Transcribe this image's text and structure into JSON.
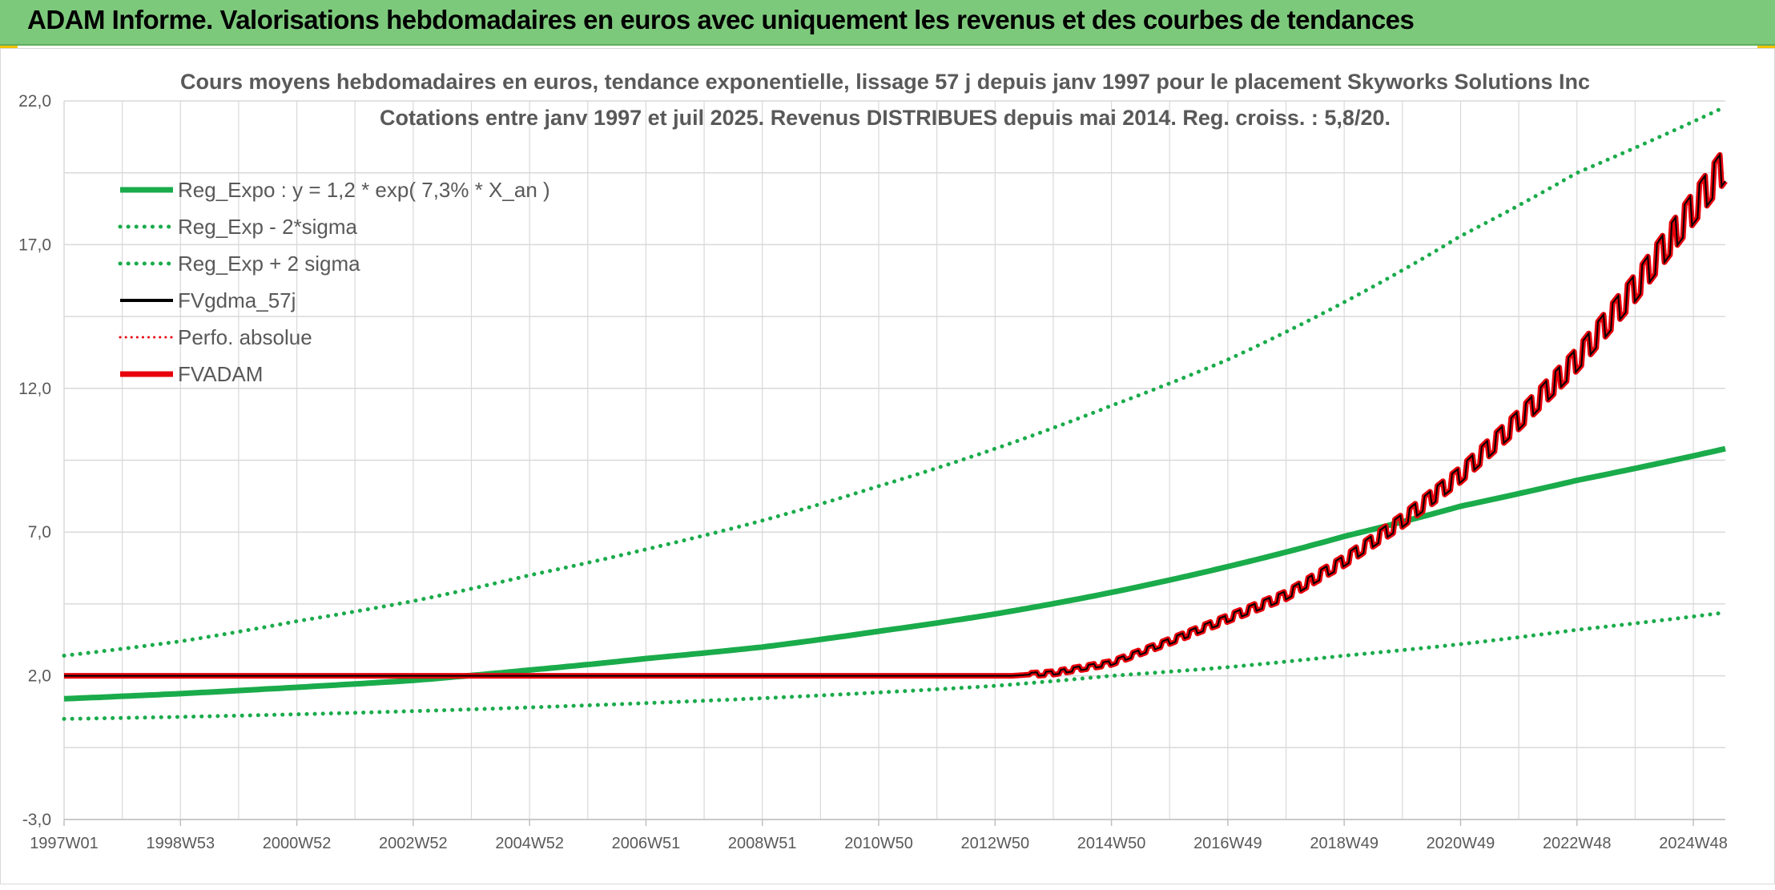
{
  "page": {
    "banner_title": "ADAM Informe. Valorisations hebdomadaires en euros avec uniquement les revenus et des courbes de tendances"
  },
  "colors": {
    "banner_bg": "#7dc97c",
    "green": "#1aab4b",
    "red": "#e8000b",
    "black": "#000000",
    "grid": "#d9d9d9"
  },
  "chart_data": {
    "type": "line",
    "title": "Cours moyens hebdomadaires en euros, tendance exponentielle, lissage 57 j depuis janv 1997 pour le placement Skyworks Solutions Inc",
    "subtitle": "Cotations entre janv 1997 et juil 2025. Revenus DISTRIBUES depuis mai 2014. Reg. croiss. : 5,8/20.",
    "xlabel": "",
    "ylabel": "",
    "x_range": [
      1997.0,
      2025.55
    ],
    "ylim": [
      -3.0,
      22.0
    ],
    "y_ticks": [
      "22,0",
      "17,0",
      "12,0",
      "7,0",
      "2,0",
      "-3,0"
    ],
    "y_tick_values": [
      22,
      17,
      12,
      7,
      2,
      -3
    ],
    "x_ticks": [
      "1997W01",
      "1998W53",
      "2000W52",
      "2002W52",
      "2004W52",
      "2006W51",
      "2008W51",
      "2010W50",
      "2012W50",
      "2014W50",
      "2016W49",
      "2018W49",
      "2020W49",
      "2022W48",
      "2024W48"
    ],
    "x_tick_values": [
      1997.0,
      1999.0,
      2001.0,
      2003.0,
      2005.0,
      2007.0,
      2009.0,
      2011.0,
      2013.0,
      2015.0,
      2017.0,
      2019.0,
      2021.0,
      2023.0,
      2025.0
    ],
    "grid": true,
    "legend_position": "top-left",
    "legend": [
      {
        "label": "Reg_Expo : y = 1,2 * exp( 7,3% *  X_an )",
        "color": "#1aab4b",
        "style": "solid-thick"
      },
      {
        "label": "Reg_Exp - 2*sigma",
        "color": "#1aab4b",
        "style": "dotted"
      },
      {
        "label": "Reg_Exp + 2 sigma",
        "color": "#1aab4b",
        "style": "dotted"
      },
      {
        "label": "FVgdma_57j",
        "color": "#000000",
        "style": "solid"
      },
      {
        "label": "Perfo. absolue",
        "color": "#e8000b",
        "style": "dotted-thin"
      },
      {
        "label": "FVADAM",
        "color": "#e8000b",
        "style": "solid-thick"
      }
    ],
    "series": [
      {
        "name": "Reg_Expo : y = 1,2 * exp( 7,3% *  X_an )",
        "x": [
          1997.0,
          1999.0,
          2001.0,
          2003.0,
          2005.0,
          2007.0,
          2009.0,
          2011.0,
          2013.0,
          2015.0,
          2017.0,
          2019.0,
          2021.0,
          2023.0,
          2025.55
        ],
        "y": [
          1.2,
          1.38,
          1.6,
          1.84,
          2.2,
          2.6,
          3.0,
          3.55,
          4.15,
          4.9,
          5.8,
          6.85,
          7.9,
          8.8,
          9.9
        ]
      },
      {
        "name": "Reg_Exp - 2*sigma",
        "x": [
          1997.0,
          1999.0,
          2001.0,
          2003.0,
          2005.0,
          2007.0,
          2009.0,
          2011.0,
          2013.0,
          2015.0,
          2017.0,
          2019.0,
          2021.0,
          2023.0,
          2025.55
        ],
        "y": [
          0.5,
          0.57,
          0.66,
          0.77,
          0.9,
          1.05,
          1.22,
          1.42,
          1.65,
          2.0,
          2.3,
          2.7,
          3.1,
          3.6,
          4.2
        ]
      },
      {
        "name": "Reg_Exp + 2 sigma",
        "x": [
          1997.0,
          1999.0,
          2001.0,
          2003.0,
          2005.0,
          2007.0,
          2009.0,
          2011.0,
          2013.0,
          2015.0,
          2017.0,
          2019.0,
          2021.0,
          2023.0,
          2025.55
        ],
        "y": [
          2.7,
          3.2,
          3.9,
          4.6,
          5.5,
          6.4,
          7.4,
          8.6,
          9.9,
          11.4,
          13.0,
          15.0,
          17.3,
          19.5,
          21.8
        ]
      },
      {
        "name": "FVgdma_57j",
        "x": [
          1997.0,
          2013.3,
          2014.0,
          2015.0,
          2016.0,
          2017.0,
          2018.0,
          2019.0,
          2020.0,
          2021.0,
          2022.0,
          2023.0,
          2024.0,
          2025.55
        ],
        "y": [
          2.0,
          2.0,
          2.1,
          2.45,
          3.2,
          4.0,
          4.8,
          6.0,
          7.4,
          9.0,
          10.9,
          13.0,
          15.5,
          19.8
        ]
      },
      {
        "name": "FVADAM",
        "x": [
          1997.0,
          2013.3,
          2014.0,
          2015.0,
          2016.0,
          2017.0,
          2018.0,
          2019.0,
          2020.0,
          2021.0,
          2022.0,
          2023.0,
          2024.0,
          2025.55
        ],
        "y": [
          2.0,
          2.0,
          2.1,
          2.45,
          3.2,
          4.0,
          4.8,
          6.0,
          7.4,
          9.0,
          10.9,
          13.0,
          15.5,
          19.8
        ]
      }
    ]
  }
}
